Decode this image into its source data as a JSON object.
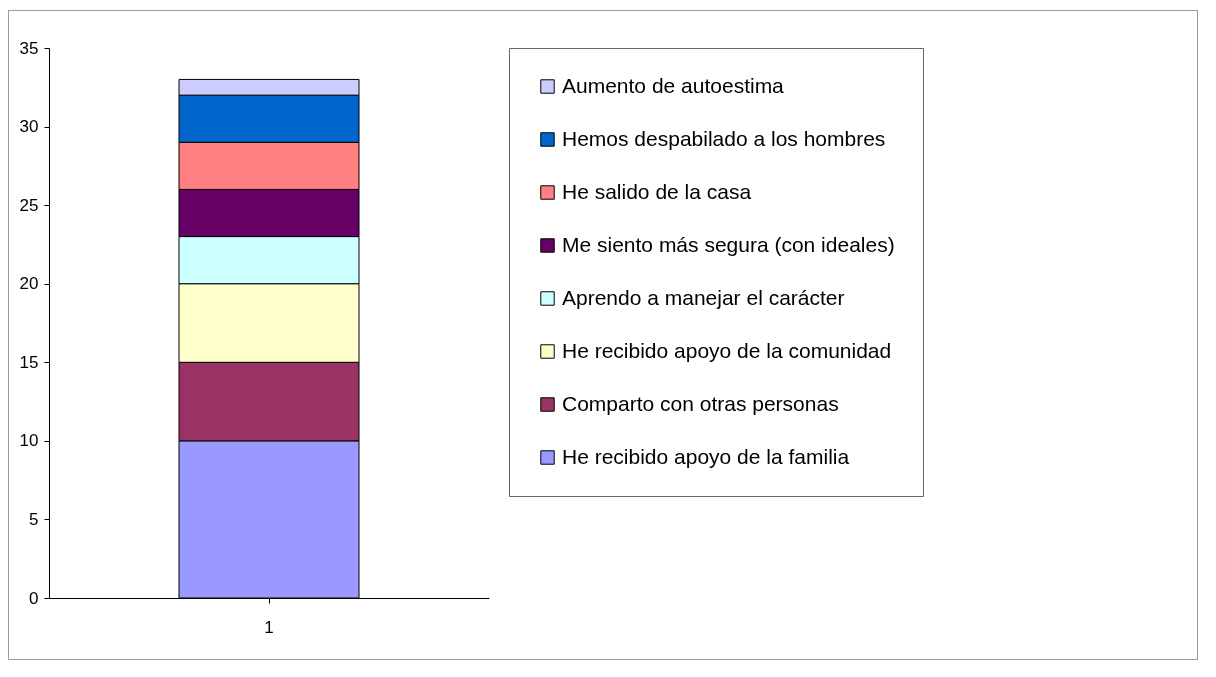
{
  "chart_data": {
    "type": "bar",
    "stacked": true,
    "categories": [
      "1"
    ],
    "series": [
      {
        "name": "He recibido apoyo de la familia",
        "color": "#9999ff",
        "values": [
          10
        ]
      },
      {
        "name": "Comparto con otras personas",
        "color": "#993366",
        "values": [
          5
        ]
      },
      {
        "name": "He recibido apoyo de la comunidad",
        "color": "#ffffcc",
        "values": [
          5
        ]
      },
      {
        "name": "Aprendo a manejar el carácter",
        "color": "#ccffff",
        "values": [
          3
        ]
      },
      {
        "name": "Me siento más segura (con ideales)",
        "color": "#660066",
        "values": [
          3
        ]
      },
      {
        "name": "He salido de la casa",
        "color": "#ff8080",
        "values": [
          3
        ]
      },
      {
        "name": "Hemos despabilado a los hombres",
        "color": "#0066cc",
        "values": [
          3
        ]
      },
      {
        "name": "Aumento de autoestima",
        "color": "#ccccff",
        "values": [
          1
        ]
      }
    ],
    "ylim": [
      0,
      35
    ],
    "yticks": [
      0,
      5,
      10,
      15,
      20,
      25,
      30,
      35
    ],
    "grid": false,
    "legend": "right"
  }
}
